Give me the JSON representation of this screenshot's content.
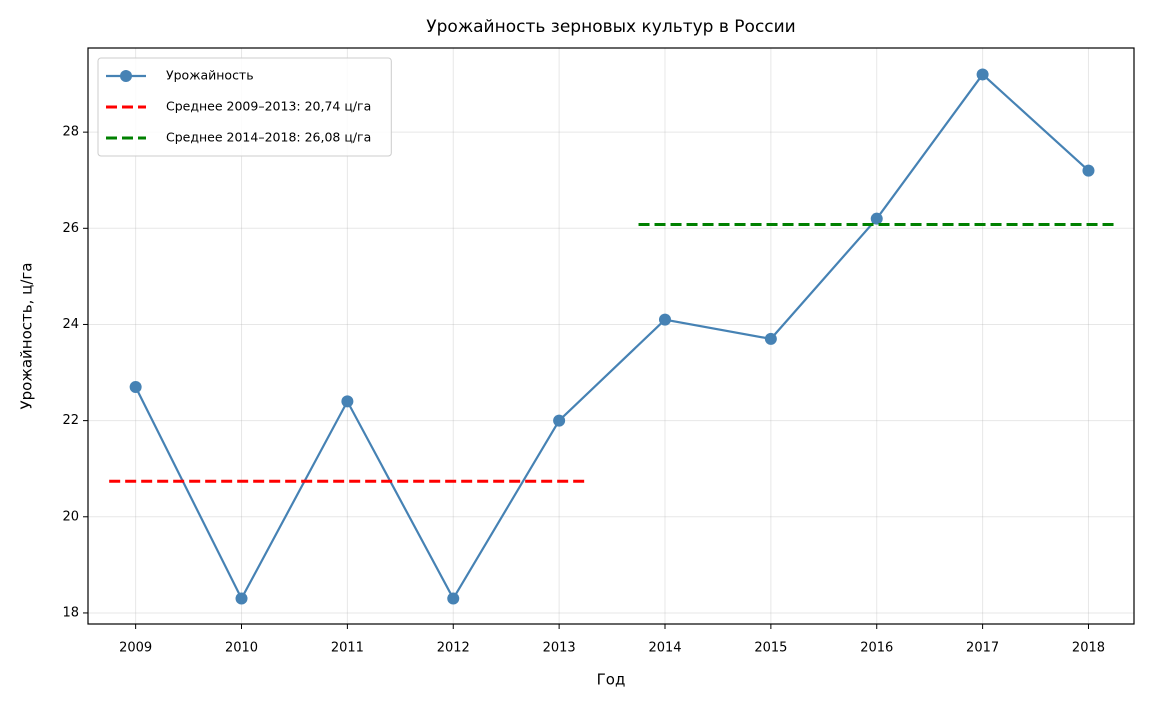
{
  "chart_data": {
    "type": "line",
    "title": "Урожайность зерновых культур в России",
    "xlabel": "Год",
    "ylabel": "Урожайность, ц/га",
    "xlim": [
      2008.55,
      2018.43
    ],
    "ylim": [
      17.77,
      29.75
    ],
    "xticks": [
      2009,
      2010,
      2011,
      2012,
      2013,
      2014,
      2015,
      2016,
      2017,
      2018
    ],
    "yticks": [
      18,
      20,
      22,
      24,
      26,
      28
    ],
    "grid": true,
    "legend": "upper left",
    "series": [
      {
        "name": "Урожайность",
        "color": "#4682b4",
        "style": "solid",
        "marker": "o",
        "x": [
          2009,
          2010,
          2011,
          2012,
          2013,
          2014,
          2015,
          2016,
          2017,
          2018
        ],
        "values": [
          22.7,
          18.3,
          22.4,
          18.3,
          22.0,
          24.1,
          23.7,
          26.2,
          29.2,
          27.2
        ]
      },
      {
        "name": "Среднее 2009–2013: 20,74 ц/га",
        "color": "#ff0000",
        "style": "dashed",
        "x": [
          2008.75,
          2013.25
        ],
        "values": [
          20.74,
          20.74
        ]
      },
      {
        "name": "Среднее 2014–2018: 26,08 ц/га",
        "color": "#008000",
        "style": "dashed",
        "x": [
          2013.75,
          2018.25
        ],
        "values": [
          26.08,
          26.08
        ]
      }
    ]
  }
}
